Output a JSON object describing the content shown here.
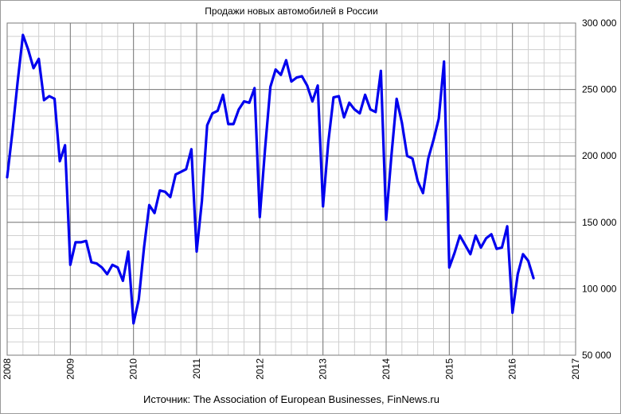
{
  "chart_data": {
    "type": "line",
    "title": "Продажи новых автомобилей в России",
    "source": "Источник: The Association of European Businesses, FinNews.ru",
    "xlim": [
      2008,
      2017
    ],
    "ylim": [
      50000,
      300000
    ],
    "x_ticks": [
      "2008",
      "2009",
      "2010",
      "2011",
      "2012",
      "2013",
      "2014",
      "2015",
      "2016",
      "2017"
    ],
    "y_ticks": [
      "50 000",
      "100 000",
      "150 000",
      "200 000",
      "250 000",
      "300 000"
    ],
    "y_axis_position": "right",
    "grid": true,
    "line_color": "#0000ee",
    "series": [
      {
        "x": [
          2008.0,
          2008.083,
          2008.167,
          2008.25,
          2008.333,
          2008.417,
          2008.5,
          2008.583,
          2008.667,
          2008.75,
          2008.833,
          2008.917,
          2009.0,
          2009.083,
          2009.167,
          2009.25,
          2009.333,
          2009.417,
          2009.5,
          2009.583,
          2009.667,
          2009.75,
          2009.833,
          2009.917,
          2010.0,
          2010.083,
          2010.167,
          2010.25,
          2010.333,
          2010.417,
          2010.5,
          2010.583,
          2010.667,
          2010.75,
          2010.833,
          2010.917,
          2011.0,
          2011.083,
          2011.167,
          2011.25,
          2011.333,
          2011.417,
          2011.5,
          2011.583,
          2011.667,
          2011.75,
          2011.833,
          2011.917,
          2012.0,
          2012.083,
          2012.167,
          2012.25,
          2012.333,
          2012.417,
          2012.5,
          2012.583,
          2012.667,
          2012.75,
          2012.833,
          2012.917,
          2013.0,
          2013.083,
          2013.167,
          2013.25,
          2013.333,
          2013.417,
          2013.5,
          2013.583,
          2013.667,
          2013.75,
          2013.833,
          2013.917,
          2014.0,
          2014.083,
          2014.167,
          2014.25,
          2014.333,
          2014.417,
          2014.5,
          2014.583,
          2014.667,
          2014.75,
          2014.833,
          2014.917,
          2015.0,
          2015.083,
          2015.167,
          2015.25,
          2015.333,
          2015.417,
          2015.5,
          2015.583,
          2015.667,
          2015.75,
          2015.833,
          2015.917,
          2016.0,
          2016.083,
          2016.167,
          2016.25,
          2016.333
        ],
        "y": [
          184000,
          218000,
          256000,
          291000,
          280000,
          266000,
          273000,
          242000,
          245000,
          243000,
          196000,
          208000,
          118000,
          135000,
          135000,
          136000,
          120000,
          119000,
          116000,
          111000,
          118000,
          116000,
          106000,
          128000,
          74000,
          92000,
          131000,
          163000,
          157000,
          174000,
          173000,
          169000,
          186000,
          188000,
          190000,
          205000,
          128000,
          166000,
          223000,
          232000,
          234000,
          246000,
          224000,
          224000,
          235000,
          241000,
          240000,
          251000,
          154000,
          205000,
          252000,
          265000,
          261000,
          272000,
          256000,
          259000,
          260000,
          253000,
          241000,
          253000,
          162000,
          210000,
          244000,
          245000,
          229000,
          240000,
          235000,
          232000,
          246000,
          235000,
          233000,
          264000,
          152000,
          200000,
          243000,
          225000,
          200000,
          198000,
          181000,
          172000,
          198000,
          212000,
          228000,
          271000,
          116000,
          127000,
          140000,
          133000,
          126000,
          140000,
          131000,
          138000,
          141000,
          130000,
          131000,
          147000,
          82000,
          111000,
          126000,
          121000,
          108000
        ]
      }
    ]
  }
}
